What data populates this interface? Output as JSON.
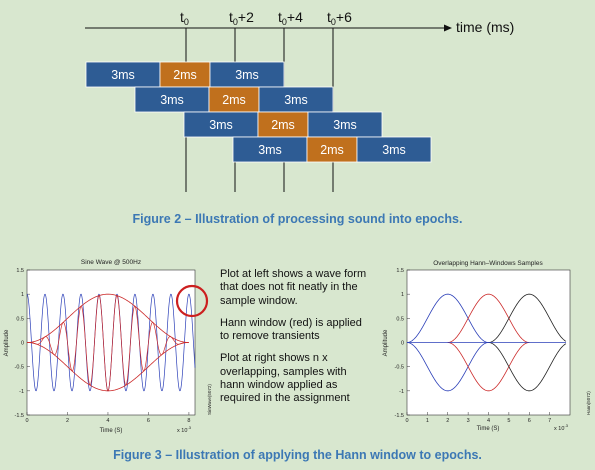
{
  "timeline": {
    "ticks": [
      {
        "base": "t",
        "sub": "0",
        "suffix": ""
      },
      {
        "base": "t",
        "sub": "0",
        "suffix": "+2"
      },
      {
        "base": "t",
        "sub": "0",
        "suffix": "+4"
      },
      {
        "base": "t",
        "sub": "0",
        "suffix": "+6"
      }
    ],
    "axis_label": "time (ms)",
    "epochs": [
      [
        {
          "label": "3ms",
          "kind": "window"
        },
        {
          "label": "2ms",
          "kind": "overlap"
        },
        {
          "label": "3ms",
          "kind": "window"
        }
      ],
      [
        {
          "label": "3ms",
          "kind": "window"
        },
        {
          "label": "2ms",
          "kind": "overlap"
        },
        {
          "label": "3ms",
          "kind": "window"
        }
      ],
      [
        {
          "label": "3ms",
          "kind": "window"
        },
        {
          "label": "2ms",
          "kind": "overlap"
        },
        {
          "label": "3ms",
          "kind": "window"
        }
      ],
      [
        {
          "label": "3ms",
          "kind": "window"
        },
        {
          "label": "2ms",
          "kind": "overlap"
        },
        {
          "label": "3ms",
          "kind": "window"
        }
      ]
    ]
  },
  "colors": {
    "background": "#d8e7cf",
    "window": "#2e5c94",
    "overlap": "#c0701d",
    "caption": "#3c78b4"
  },
  "figure2_caption": "Figure 2 – Illustration of processing sound into epochs.",
  "left_plot": {
    "title": "Sine Wave @ 500Hz",
    "xlabel": "Time (S)",
    "ylabel": "Amplitude",
    "x_exponent": "x 10",
    "x_exponent_power": "-3",
    "side_label": "SinWave(5072)",
    "yticks": [
      "1.5",
      "1",
      "0.5",
      "0",
      "-0.5",
      "-1",
      "-1.5"
    ],
    "xticks": [
      "0",
      "2",
      "4",
      "6",
      "8"
    ]
  },
  "description": [
    "Plot at left shows a wave form that does not fit neatly in the sample window.",
    "Hann window (red) is applied to remove transients",
    "Plot at right shows n x overlapping, samples with hann window applied as required in the assignment"
  ],
  "right_plot": {
    "title": "Overlapping Hann–Windows Samples",
    "xlabel": "Time (S)",
    "ylabel": "Amplitude",
    "x_exponent": "x 10",
    "x_exponent_power": "-3",
    "side_label": "Hann(5072)",
    "yticks": [
      "1.5",
      "1",
      "0.5",
      "0",
      "-0.5",
      "-1",
      "-1.5"
    ],
    "xticks": [
      "0",
      "1",
      "2",
      "3",
      "4",
      "5",
      "6",
      "7"
    ]
  },
  "figure3_caption": "Figure 3 – Illustration of applying the Hann window to epochs."
}
